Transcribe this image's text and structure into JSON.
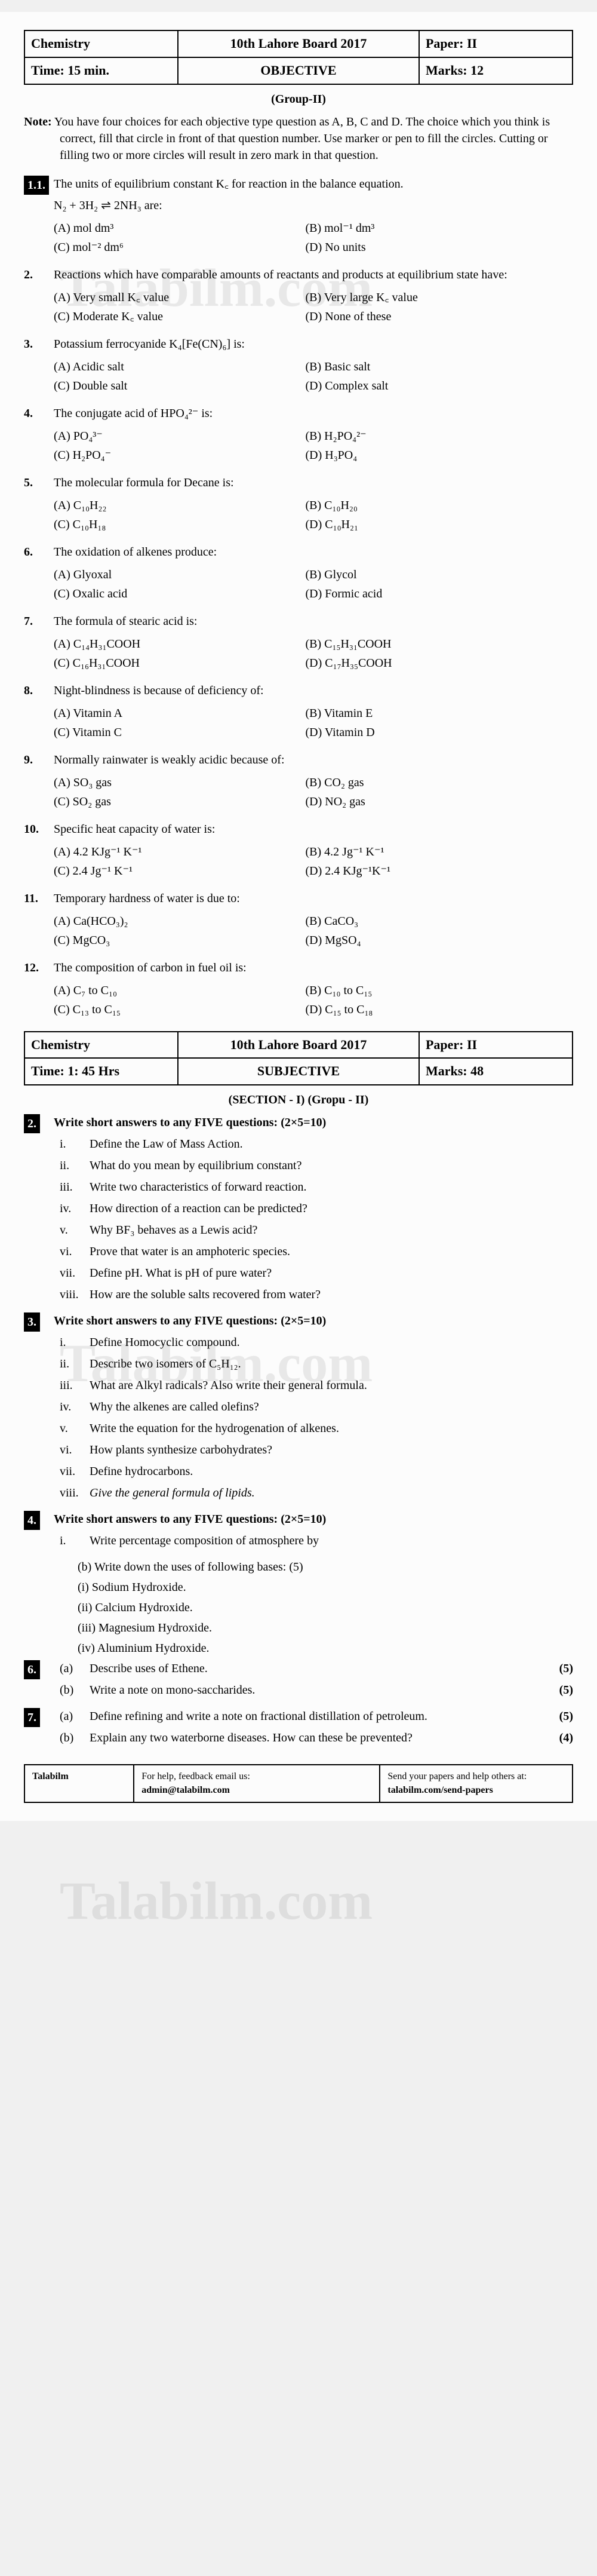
{
  "watermark": "Talabilm.com",
  "header1": {
    "subject": "Chemistry",
    "board": "10th Lahore Board 2017",
    "paper": "Paper: II",
    "time": "Time: 15 min.",
    "type": "OBJECTIVE",
    "marks": "Marks: 12"
  },
  "group": "(Group-II)",
  "note_label": "Note:",
  "note_text": "You have four choices for each objective type question as A, B, C and D. The choice which you think is correct, fill that circle in front of that question number. Use marker or pen to fill the circles. Cutting or filling two or more circles will result in zero mark in that question.",
  "questions": [
    {
      "n": "1.1.",
      "boxed": true,
      "text": "The units of equilibrium constant K꜀ for reaction in the balance equation.",
      "extra": "N₂ + 3H₂ ⇌ 2NH₃ are:",
      "choices": [
        "(A)  mol dm³",
        "(B)  mol⁻¹ dm³",
        "(C)  mol⁻² dm⁶",
        "(D)  No units"
      ]
    },
    {
      "n": "2.",
      "text": "Reactions which have comparable amounts of reactants and products at equilibrium state have:",
      "choices": [
        "(A)  Very small K꜀ value",
        "(B)  Very large K꜀ value",
        "(C)  Moderate K꜀ value",
        "(D)  None of these"
      ]
    },
    {
      "n": "3.",
      "text": "Potassium ferrocyanide K₄[Fe(CN)₆] is:",
      "choices": [
        "(A)  Acidic salt",
        "(B)  Basic salt",
        "(C)  Double salt",
        "(D)  Complex salt"
      ]
    },
    {
      "n": "4.",
      "text": "The conjugate acid of HPO₄²⁻ is:",
      "choices": [
        "(A)  PO₄³⁻",
        "(B)  H₂PO₄²⁻",
        "(C)  H₂PO₄⁻",
        "(D)  H₃PO₄"
      ]
    },
    {
      "n": "5.",
      "text": "The molecular formula for Decane is:",
      "choices": [
        "(A)  C₁₀H₂₂",
        "(B)  C₁₀H₂₀",
        "(C)  C₁₀H₁₈",
        "(D)  C₁₀H₂₁"
      ]
    },
    {
      "n": "6.",
      "text": "The oxidation of alkenes produce:",
      "choices": [
        "(A)  Glyoxal",
        "(B)  Glycol",
        "(C)  Oxalic acid",
        "(D)  Formic acid"
      ]
    },
    {
      "n": "7.",
      "text": "The formula of stearic acid is:",
      "choices": [
        "(A)  C₁₄H₃₁COOH",
        "(B)  C₁₅H₃₁COOH",
        "(C)  C₁₆H₃₁COOH",
        "(D)  C₁₇H₃₅COOH"
      ]
    },
    {
      "n": "8.",
      "text": "Night-blindness is because of deficiency of:",
      "choices": [
        "(A)  Vitamin A",
        "(B)  Vitamin E",
        "(C)  Vitamin C",
        "(D)  Vitamin D"
      ]
    },
    {
      "n": "9.",
      "text": "Normally rainwater is weakly acidic because of:",
      "choices": [
        "(A)  SO₃ gas",
        "(B)  CO₂ gas",
        "(C)  SO₂ gas",
        "(D)  NO₂ gas"
      ]
    },
    {
      "n": "10.",
      "text": "Specific heat capacity of water is:",
      "choices": [
        "(A)  4.2 KJg⁻¹ K⁻¹",
        "(B)  4.2 Jg⁻¹ K⁻¹",
        "(C)  2.4 Jg⁻¹ K⁻¹",
        "(D)  2.4 KJg⁻¹K⁻¹"
      ]
    },
    {
      "n": "11.",
      "text": "Temporary hardness of water is due to:",
      "choices": [
        "(A)  Ca(HCO₃)₂",
        "(B)  CaCO₃",
        "(C)  MgCO₃",
        "(D)  MgSO₄"
      ]
    },
    {
      "n": "12.",
      "text": "The composition of carbon in fuel oil is:",
      "choices": [
        "(A)  C₇ to C₁₀",
        "(B)  C₁₀ to C₁₅",
        "(C)  C₁₃ to C₁₅",
        "(D)  C₁₅ to C₁₈"
      ]
    }
  ],
  "header2": {
    "subject": "Chemistry",
    "board": "10th Lahore Board 2017",
    "paper": "Paper: II",
    "time": "Time: 1: 45 Hrs",
    "type": "SUBJECTIVE",
    "marks": "Marks: 48"
  },
  "section_head": "(SECTION - I) (Gropu - II)",
  "sub_questions": [
    {
      "n": "2.",
      "boxed": true,
      "title": "Write short answers to any FIVE questions: (2×5=10)",
      "items": [
        {
          "n": "i.",
          "t": "Define the Law of Mass Action."
        },
        {
          "n": "ii.",
          "t": "What do you mean by equilibrium constant?"
        },
        {
          "n": "iii.",
          "t": "Write two characteristics of forward reaction."
        },
        {
          "n": "iv.",
          "t": "How direction of a reaction can be predicted?"
        },
        {
          "n": "v.",
          "t": "Why BF₃ behaves as a Lewis acid?"
        },
        {
          "n": "vi.",
          "t": "Prove that water is an amphoteric species."
        },
        {
          "n": "vii.",
          "t": "Define pH. What is pH of pure water?"
        },
        {
          "n": "viii.",
          "t": "How are the soluble salts recovered from water?"
        }
      ]
    },
    {
      "n": "3.",
      "boxed": true,
      "title": "Write short answers to any FIVE questions: (2×5=10)",
      "items": [
        {
          "n": "i.",
          "t": "Define Homocyclic compound."
        },
        {
          "n": "ii.",
          "t": "Describe two isomers of C₅H₁₂."
        },
        {
          "n": "iii.",
          "t": "What are Alkyl radicals? Also write their general formula."
        },
        {
          "n": "iv.",
          "t": "Why the alkenes are called olefins?"
        },
        {
          "n": "v.",
          "t": "Write the equation for the hydrogenation of alkenes."
        },
        {
          "n": "vi.",
          "t": "How plants synthesize carbohydrates?"
        },
        {
          "n": "vii.",
          "t": "Define hydrocarbons."
        },
        {
          "n": "viii.",
          "t": "Give the general formula of lipids.",
          "italic": true
        }
      ]
    },
    {
      "n": "4.",
      "boxed": true,
      "title": "Write short answers to any FIVE questions: (2×5=10)",
      "items": [
        {
          "n": "i.",
          "t": "Write percentage composition of atmosphere by"
        }
      ]
    }
  ],
  "sub4_extras": [
    "(b)   Write down the uses of following bases:     (5)",
    "(i)   Sodium Hydroxide.",
    "(ii)  Calcium Hydroxide.",
    "(iii) Magnesium Hydroxide.",
    "(iv)  Aluminium Hydroxide."
  ],
  "long_questions": [
    {
      "n": "6.",
      "boxed": true,
      "items": [
        {
          "label": "(a)",
          "t": "Describe uses of Ethene.",
          "m": "(5)"
        },
        {
          "label": "(b)",
          "t": "Write a note on mono-saccharides.",
          "m": "(5)"
        }
      ]
    },
    {
      "n": "7.",
      "boxed": true,
      "items": [
        {
          "label": "(a)",
          "t": "Define refining and write a note on fractional distillation of petroleum.",
          "m": "(5)"
        },
        {
          "label": "(b)",
          "t": "Explain any two waterborne diseases. How can these be prevented?",
          "m": "(4)"
        }
      ]
    }
  ],
  "footer": {
    "brand": "Talabilm",
    "mid_label": "For help, feedback email us:",
    "email": "admin@talabilm.com",
    "right_label": "Send your papers and help others at:",
    "right_link": "talabilm.com/send-papers"
  }
}
